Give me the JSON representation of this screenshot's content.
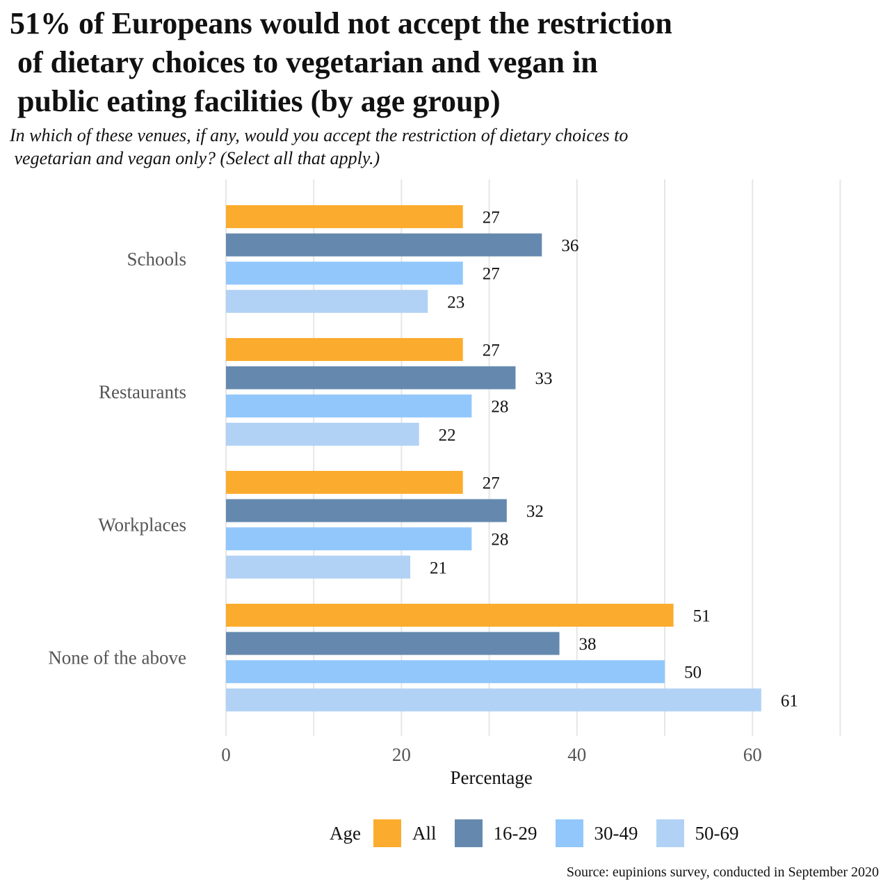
{
  "chart_data": {
    "type": "bar",
    "orientation": "horizontal",
    "title_lines": [
      "51% of Europeans would not accept the restriction",
      " of dietary choices to vegetarian and vegan in",
      " public eating facilities (by age group)"
    ],
    "subtitle_lines": [
      "In which of these venues, if any, would you accept the restriction of dietary choices to",
      " vegetarian and vegan only? (Select all that apply.)"
    ],
    "categories": [
      "Schools",
      "Restaurants",
      "Workplaces",
      "None of the above"
    ],
    "series": [
      {
        "name": "All",
        "color": "#FBAC2E",
        "values": [
          27,
          27,
          27,
          51
        ]
      },
      {
        "name": "16-29",
        "color": "#6589AE",
        "values": [
          36,
          33,
          32,
          38
        ]
      },
      {
        "name": "30-49",
        "color": "#92C7FB",
        "values": [
          27,
          28,
          28,
          50
        ]
      },
      {
        "name": "50-69",
        "color": "#B1D2F5",
        "values": [
          23,
          22,
          21,
          61
        ]
      }
    ],
    "xlabel": "Percentage",
    "xlim": [
      0,
      70
    ],
    "xticks": [
      0,
      20,
      40,
      60
    ],
    "grid": true,
    "legend_title": "Age",
    "legend_position": "bottom"
  },
  "source": "Source: eupinions survey, conducted in September 2020"
}
